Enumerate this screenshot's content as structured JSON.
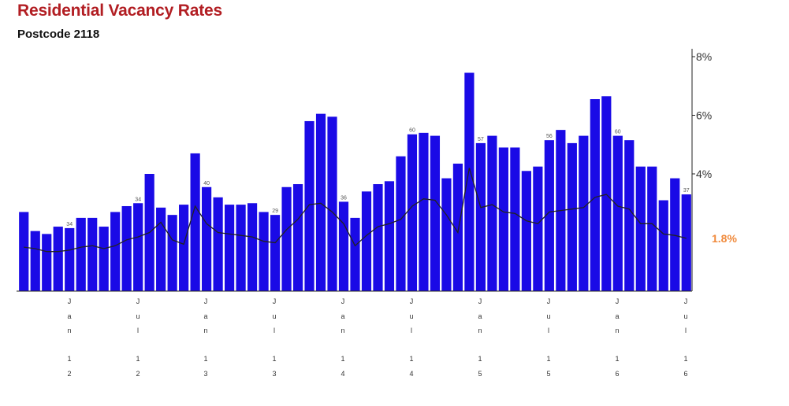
{
  "chart_data": {
    "type": "bar",
    "title": "Residential Vacancy Rates",
    "subtitle": "Postcode 2118",
    "x_tick_labels": [
      "Jan 12",
      "Jul 12",
      "Jan 13",
      "Jul 13",
      "Jan 14",
      "Jul 14",
      "Jan 15",
      "Jul 15",
      "Jan 16",
      "Jul 16"
    ],
    "y_axis_position": "right",
    "y_tick_labels": [
      "4%",
      "6%",
      "8%"
    ],
    "ylim": [
      0,
      8
    ],
    "latest_value_label": "1.8%",
    "colors": {
      "bars": "#1a0ae6",
      "line": "#222222",
      "latest": "#f08a3c",
      "title": "#b21e23"
    },
    "series": [
      {
        "values": [
          2.7,
          2.05,
          1.95,
          2.2,
          2.15,
          2.5,
          2.5,
          2.2,
          2.7,
          2.9,
          3.0,
          4.0,
          2.85,
          2.6,
          2.95,
          4.7,
          3.55,
          3.2,
          2.95,
          2.95,
          3.0,
          2.7,
          2.6,
          3.55,
          3.65,
          5.8,
          6.05,
          5.95,
          3.05,
          2.5,
          3.4,
          3.65,
          3.75,
          4.6,
          5.35,
          5.4,
          5.3,
          3.85,
          4.35,
          7.45,
          5.05,
          5.3,
          4.9,
          4.9,
          4.1,
          4.25,
          5.15,
          5.5,
          5.05,
          5.3,
          6.55,
          6.65,
          5.3,
          5.15,
          4.25,
          4.25,
          3.1,
          3.85,
          3.3
        ],
        "data_labels": [
          {
            "index": 4,
            "text": "34"
          },
          {
            "index": 10,
            "text": "34"
          },
          {
            "index": 16,
            "text": "40"
          },
          {
            "index": 22,
            "text": "29"
          },
          {
            "index": 28,
            "text": "36"
          },
          {
            "index": 34,
            "text": "60"
          },
          {
            "index": 40,
            "text": "57"
          },
          {
            "index": 46,
            "text": "56"
          },
          {
            "index": 52,
            "text": "60"
          },
          {
            "index": 58,
            "text": "37"
          }
        ]
      },
      {
        "type": "line",
        "values": [
          1.5,
          1.45,
          1.35,
          1.35,
          1.4,
          1.5,
          1.55,
          1.45,
          1.55,
          1.75,
          1.85,
          2.0,
          2.35,
          1.75,
          1.6,
          2.9,
          2.3,
          2.0,
          1.95,
          1.9,
          1.85,
          1.7,
          1.65,
          2.1,
          2.45,
          2.95,
          3.0,
          2.7,
          2.3,
          1.55,
          1.9,
          2.2,
          2.3,
          2.45,
          2.9,
          3.15,
          3.1,
          2.6,
          2.0,
          4.2,
          2.85,
          2.95,
          2.7,
          2.65,
          2.4,
          2.3,
          2.7,
          2.75,
          2.8,
          2.85,
          3.2,
          3.3,
          2.9,
          2.8,
          2.3,
          2.3,
          1.95,
          1.9,
          1.8
        ]
      }
    ]
  }
}
